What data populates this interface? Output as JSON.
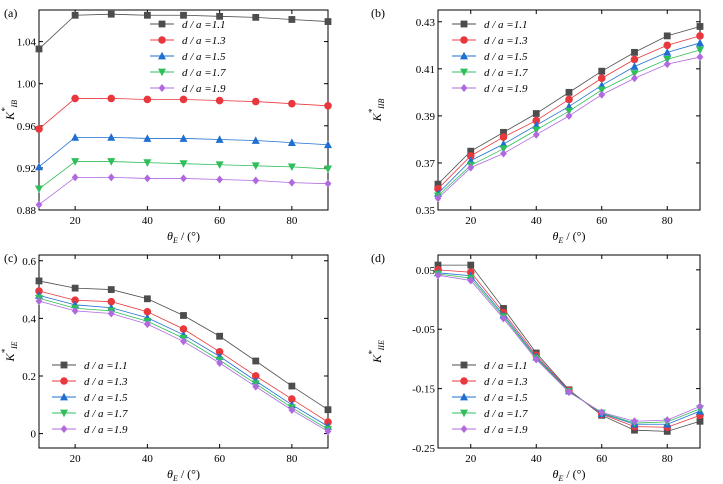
{
  "chart_data": [
    {
      "type": "line",
      "panel_label": "(a)",
      "xlabel": "θE / (°)",
      "ylabel": "K*IB",
      "x": [
        10,
        20,
        30,
        40,
        50,
        60,
        70,
        80,
        90
      ],
      "xlim": [
        10,
        90
      ],
      "ylim": [
        0.88,
        1.07
      ],
      "xticks": [
        20,
        40,
        60,
        80
      ],
      "yticks": [
        0.88,
        0.92,
        0.96,
        1.0,
        1.04
      ],
      "ytick_labels": [
        "0.88",
        "0.92",
        "0.96",
        "1.00",
        "1.04"
      ],
      "legend": "top-right",
      "series": [
        {
          "name": "d / a =1.1",
          "values": [
            1.033,
            1.065,
            1.066,
            1.065,
            1.065,
            1.064,
            1.063,
            1.061,
            1.059
          ]
        },
        {
          "name": "d / a =1.3",
          "values": [
            0.957,
            0.986,
            0.986,
            0.985,
            0.985,
            0.984,
            0.983,
            0.981,
            0.979
          ]
        },
        {
          "name": "d / a =1.5",
          "values": [
            0.921,
            0.949,
            0.949,
            0.948,
            0.948,
            0.947,
            0.946,
            0.944,
            0.942
          ]
        },
        {
          "name": "d / a =1.7",
          "values": [
            0.9,
            0.926,
            0.926,
            0.925,
            0.924,
            0.923,
            0.922,
            0.921,
            0.919
          ]
        },
        {
          "name": "d / a =1.9",
          "values": [
            0.885,
            0.911,
            0.911,
            0.91,
            0.91,
            0.909,
            0.908,
            0.906,
            0.905
          ]
        }
      ]
    },
    {
      "type": "line",
      "panel_label": "(b)",
      "xlabel": "θE / (°)",
      "ylabel": "K*IIB",
      "x": [
        10,
        20,
        30,
        40,
        50,
        60,
        70,
        80,
        90
      ],
      "xlim": [
        10,
        90
      ],
      "ylim": [
        0.35,
        0.435
      ],
      "xticks": [
        20,
        40,
        60,
        80
      ],
      "yticks": [
        0.35,
        0.37,
        0.39,
        0.41,
        0.43
      ],
      "ytick_labels": [
        "0.35",
        "0.37",
        "0.39",
        "0.41",
        "0.43"
      ],
      "legend": "top-left",
      "series": [
        {
          "name": "d / a =1.1",
          "values": [
            0.361,
            0.375,
            0.383,
            0.391,
            0.4,
            0.409,
            0.417,
            0.424,
            0.428
          ]
        },
        {
          "name": "d / a =1.3",
          "values": [
            0.359,
            0.373,
            0.381,
            0.388,
            0.397,
            0.406,
            0.414,
            0.42,
            0.424
          ]
        },
        {
          "name": "d / a =1.5",
          "values": [
            0.357,
            0.371,
            0.378,
            0.386,
            0.394,
            0.403,
            0.411,
            0.417,
            0.421
          ]
        },
        {
          "name": "d / a =1.7",
          "values": [
            0.356,
            0.369,
            0.376,
            0.384,
            0.392,
            0.401,
            0.408,
            0.414,
            0.418
          ]
        },
        {
          "name": "d / a =1.9",
          "values": [
            0.355,
            0.368,
            0.374,
            0.382,
            0.39,
            0.399,
            0.406,
            0.412,
            0.415
          ]
        }
      ]
    },
    {
      "type": "line",
      "panel_label": "(c)",
      "xlabel": "θE / (°)",
      "ylabel": "K*IE",
      "x": [
        10,
        20,
        30,
        40,
        50,
        60,
        70,
        80,
        90
      ],
      "xlim": [
        10,
        90
      ],
      "ylim": [
        -0.05,
        0.62
      ],
      "xticks": [
        20,
        40,
        60,
        80
      ],
      "yticks": [
        0,
        0.2,
        0.4,
        0.6
      ],
      "ytick_labels": [
        "0",
        "0.2",
        "0.4",
        "0.6"
      ],
      "legend": "bottom-left",
      "series": [
        {
          "name": "d / a =1.1",
          "values": [
            0.53,
            0.505,
            0.5,
            0.468,
            0.41,
            0.338,
            0.252,
            0.165,
            0.083
          ]
        },
        {
          "name": "d / a =1.3",
          "values": [
            0.495,
            0.463,
            0.458,
            0.423,
            0.363,
            0.284,
            0.2,
            0.12,
            0.04
          ]
        },
        {
          "name": "d / a =1.5",
          "values": [
            0.48,
            0.447,
            0.437,
            0.402,
            0.343,
            0.268,
            0.183,
            0.1,
            0.025
          ]
        },
        {
          "name": "d / a =1.7",
          "values": [
            0.47,
            0.435,
            0.426,
            0.39,
            0.331,
            0.255,
            0.173,
            0.09,
            0.015
          ]
        },
        {
          "name": "d / a =1.9",
          "values": [
            0.46,
            0.426,
            0.417,
            0.38,
            0.32,
            0.245,
            0.163,
            0.082,
            0.008
          ]
        }
      ]
    },
    {
      "type": "line",
      "panel_label": "(d)",
      "xlabel": "θE / (°)",
      "ylabel": "K*IIE",
      "x": [
        10,
        20,
        30,
        40,
        50,
        60,
        70,
        80,
        90
      ],
      "xlim": [
        10,
        90
      ],
      "ylim": [
        -0.25,
        0.075
      ],
      "xticks": [
        20,
        40,
        60,
        80
      ],
      "yticks": [
        -0.25,
        -0.15,
        -0.05,
        0.05
      ],
      "ytick_labels": [
        "-0.25",
        "-0.15",
        "-0.05",
        "0.05"
      ],
      "legend": "bottom-left",
      "series": [
        {
          "name": "d / a =1.1",
          "values": [
            0.058,
            0.058,
            -0.015,
            -0.09,
            -0.152,
            -0.195,
            -0.22,
            -0.222,
            -0.205
          ]
        },
        {
          "name": "d / a =1.3",
          "values": [
            0.05,
            0.046,
            -0.022,
            -0.094,
            -0.153,
            -0.193,
            -0.214,
            -0.215,
            -0.195
          ]
        },
        {
          "name": "d / a =1.5",
          "values": [
            0.045,
            0.04,
            -0.026,
            -0.097,
            -0.154,
            -0.192,
            -0.21,
            -0.21,
            -0.188
          ]
        },
        {
          "name": "d / a =1.7",
          "values": [
            0.043,
            0.036,
            -0.029,
            -0.099,
            -0.155,
            -0.191,
            -0.208,
            -0.206,
            -0.184
          ]
        },
        {
          "name": "d / a =1.9",
          "values": [
            0.041,
            0.032,
            -0.032,
            -0.101,
            -0.156,
            -0.19,
            -0.205,
            -0.203,
            -0.18
          ]
        }
      ]
    }
  ],
  "series_style": {
    "colors": [
      "#4d4d4d",
      "#e8383d",
      "#1f6fd1",
      "#2fbf5a",
      "#b169e0"
    ],
    "markers": [
      "square",
      "circle",
      "triangle-up",
      "triangle-down",
      "diamond"
    ]
  }
}
